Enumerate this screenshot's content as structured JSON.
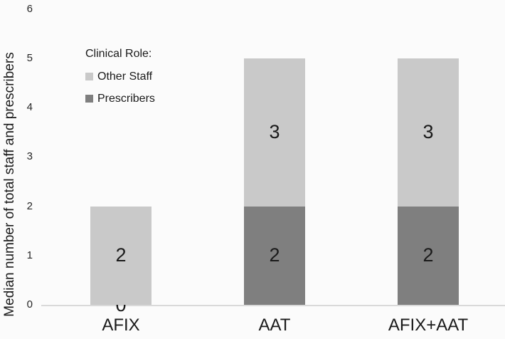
{
  "chart_data": {
    "type": "bar",
    "stacked": true,
    "categories": [
      "AFIX",
      "AAT",
      "AFIX+AAT"
    ],
    "series": [
      {
        "name": "Prescribers",
        "color": "#7f7f7f",
        "values": [
          0,
          2,
          2
        ]
      },
      {
        "name": "Other Staff",
        "color": "#c9c9c9",
        "values": [
          2,
          3,
          3
        ]
      }
    ],
    "totals": [
      2,
      5,
      5
    ],
    "xlabel": "",
    "ylabel": "Median number of total staff and prescribers",
    "ylim": [
      0,
      6
    ],
    "yticks": [
      0,
      1,
      2,
      3,
      4,
      5,
      6
    ],
    "grid": false,
    "data_labels_shown": true,
    "legend": {
      "title": "Clinical Role:",
      "position": "upper-left-inside",
      "items": [
        {
          "label": "Other Staff",
          "color": "#c9c9c9"
        },
        {
          "label": "Prescribers",
          "color": "#7f7f7f"
        }
      ]
    },
    "colors": {
      "background": "#fbfbfb",
      "axis_line": "#d9d9d9",
      "text": "#1a1a1a",
      "other_staff": "#c9c9c9",
      "prescribers": "#7f7f7f"
    }
  }
}
